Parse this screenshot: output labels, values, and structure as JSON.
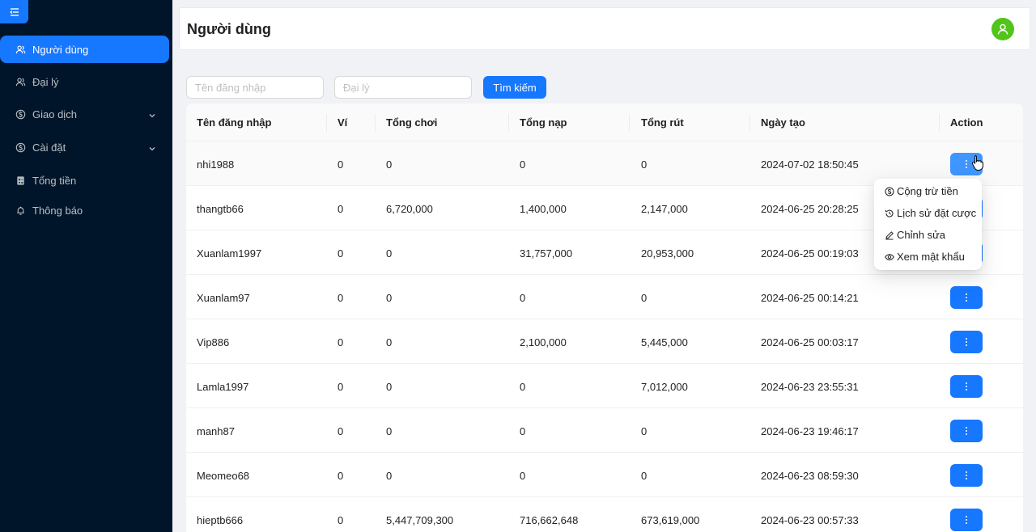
{
  "sidebar": {
    "items": [
      {
        "label": "Người dùng",
        "icon": "users-icon",
        "active": true
      },
      {
        "label": "Đại lý",
        "icon": "users-icon"
      },
      {
        "label": "Giao dịch",
        "icon": "dollar-icon",
        "expandable": true
      },
      {
        "label": "Cài đặt",
        "icon": "dollar-icon",
        "expandable": true
      },
      {
        "label": "Tổng tiền",
        "icon": "calculator-icon"
      },
      {
        "label": "Thông báo",
        "icon": "bell-icon"
      }
    ]
  },
  "header": {
    "title": "Người dùng"
  },
  "search": {
    "username_placeholder": "Tên đăng nhập",
    "agent_placeholder": "Đại lý",
    "button_label": "Tìm kiếm"
  },
  "table": {
    "columns": [
      "Tên đăng nhập",
      "Ví",
      "Tổng chơi",
      "Tổng nạp",
      "Tổng rút",
      "Ngày tạo",
      "Action"
    ],
    "rows": [
      {
        "username": "nhi1988",
        "wallet": "0",
        "total_play": "0",
        "total_deposit": "0",
        "total_withdraw": "0",
        "created": "2024-07-02 18:50:45"
      },
      {
        "username": "thangtb66",
        "wallet": "0",
        "total_play": "6,720,000",
        "total_deposit": "1,400,000",
        "total_withdraw": "2,147,000",
        "created": "2024-06-25 20:28:25"
      },
      {
        "username": "Xuanlam1997",
        "wallet": "0",
        "total_play": "0",
        "total_deposit": "31,757,000",
        "total_withdraw": "20,953,000",
        "created": "2024-06-25 00:19:03"
      },
      {
        "username": "Xuanlam97",
        "wallet": "0",
        "total_play": "0",
        "total_deposit": "0",
        "total_withdraw": "0",
        "created": "2024-06-25 00:14:21"
      },
      {
        "username": "Vip886",
        "wallet": "0",
        "total_play": "0",
        "total_deposit": "2,100,000",
        "total_withdraw": "5,445,000",
        "created": "2024-06-25 00:03:17"
      },
      {
        "username": "Lamla1997",
        "wallet": "0",
        "total_play": "0",
        "total_deposit": "0",
        "total_withdraw": "7,012,000",
        "created": "2024-06-23 23:55:31"
      },
      {
        "username": "manh87",
        "wallet": "0",
        "total_play": "0",
        "total_deposit": "0",
        "total_withdraw": "0",
        "created": "2024-06-23 19:46:17"
      },
      {
        "username": "Meomeo68",
        "wallet": "0",
        "total_play": "0",
        "total_deposit": "0",
        "total_withdraw": "0",
        "created": "2024-06-23 08:59:30"
      },
      {
        "username": "hieptb666",
        "wallet": "0",
        "total_play": "5,447,709,300",
        "total_deposit": "716,662,648",
        "total_withdraw": "673,619,000",
        "created": "2024-06-23 00:57:33"
      }
    ]
  },
  "dropdown": {
    "items": [
      {
        "label": "Cộng trừ tiền",
        "icon": "dollar-circle-icon"
      },
      {
        "label": "Lịch sử đặt cược",
        "icon": "history-icon"
      },
      {
        "label": "Chỉnh sửa",
        "icon": "edit-icon"
      },
      {
        "label": "Xem mật khẩu",
        "icon": "eye-icon"
      }
    ]
  },
  "colors": {
    "sidebar_bg": "#001529",
    "primary": "#1677ff",
    "avatar_bg": "#52c41a"
  }
}
